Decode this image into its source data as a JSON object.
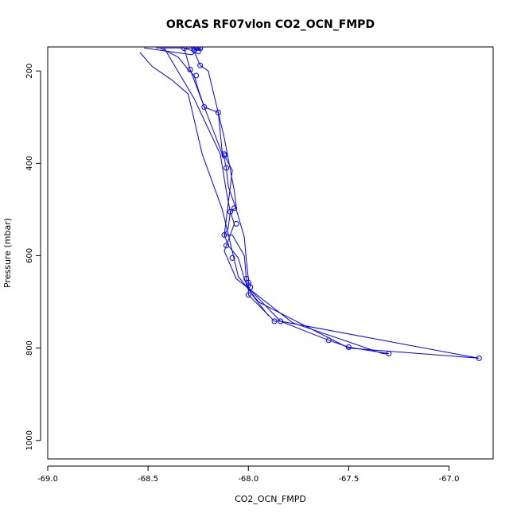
{
  "chart_data": {
    "type": "line",
    "title": "ORCAS RF07vlon CO2_OCN_FMPD",
    "xlabel": "CO2_OCN_FMPD",
    "ylabel": "Pressure (mbar)",
    "xlim": [
      -69.0,
      -66.78
    ],
    "ylim": [
      1040,
      148
    ],
    "y_reversed": true,
    "x_ticks": [
      -69.0,
      -68.5,
      -68.0,
      -67.5,
      -67.0
    ],
    "x_tick_labels": [
      "-69.0",
      "-68.5",
      "-68.0",
      "-67.5",
      "-67.0"
    ],
    "y_ticks": [
      200,
      400,
      600,
      800,
      1000
    ],
    "y_tick_labels": [
      "200",
      "400",
      "600",
      "800",
      "1000"
    ],
    "grid": false,
    "legend": "none",
    "marker": "open-circle",
    "colors": {
      "series": "#0000ff",
      "axis": "#000000",
      "background": "#ffffff"
    },
    "series": [
      {
        "x": [
          -68.52,
          -68.28,
          -68.26,
          -68.25,
          -68.24,
          -68.24,
          -68.26,
          -68.27,
          -68.32,
          -68.29,
          -68.22,
          -68.15,
          -68.13,
          -68.12,
          -68.08,
          -68.12,
          -68.1,
          -68.05,
          -68.02,
          -68.01,
          -68.0,
          -68.0,
          -67.87,
          -67.84,
          -67.6,
          -67.5,
          -67.3,
          -67.33,
          -67.78,
          -68.06,
          -68.12,
          -68.07,
          -68.09,
          -68.11,
          -68.14,
          -68.27,
          -68.42
        ],
        "y": [
          150,
          165,
          158,
          152,
          150,
          151,
          155,
          150,
          151,
          197,
          278,
          290,
          378,
          383,
          415,
          555,
          578,
          605,
          650,
          660,
          668,
          685,
          742,
          742,
          783,
          798,
          812,
          812,
          745,
          650,
          590,
          531,
          505,
          460,
          380,
          260,
          150
        ]
      },
      {
        "x": [
          -68.46,
          -68.34,
          -68.32,
          -68.27,
          -68.24,
          -68.2,
          -68.12,
          -68.07,
          -68.06,
          -68.09,
          -68.1,
          -68.12,
          -68.08,
          -68.02,
          -68.01,
          -68.01,
          -67.84,
          -66.85,
          -67.5,
          -67.95,
          -68.05,
          -68.13,
          -68.23,
          -68.3,
          -68.38,
          -68.48,
          -68.54
        ],
        "y": [
          150,
          150,
          150,
          158,
          188,
          200,
          345,
          460,
          495,
          505,
          540,
          555,
          555,
          600,
          650,
          665,
          742,
          822,
          800,
          700,
          645,
          500,
          380,
          250,
          220,
          190,
          160
        ]
      },
      {
        "x": [
          -68.44,
          -68.35,
          -68.3,
          -68.27,
          -68.25,
          -68.22,
          -68.13,
          -68.12,
          -68.11,
          -68.1,
          -68.06,
          -68.02,
          -68.01,
          -68.0,
          -68.0,
          -68.0,
          -67.98,
          -67.9
        ],
        "y": [
          150,
          170,
          197,
          210,
          240,
          278,
          380,
          390,
          410,
          450,
          500,
          560,
          610,
          650,
          660,
          668,
          685,
          730
        ]
      }
    ],
    "points": {
      "x": [
        -68.24,
        -68.25,
        -68.26,
        -68.27,
        -68.24,
        -68.27,
        -68.32,
        -68.24,
        -68.25,
        -68.29,
        -68.22,
        -68.26,
        -68.15,
        -68.12,
        -68.12,
        -68.11,
        -68.07,
        -68.09,
        -68.06,
        -68.12,
        -68.11,
        -68.08,
        -68.01,
        -68.0,
        -68.0,
        -67.99,
        -68.0,
        -67.87,
        -67.84,
        -67.6,
        -67.5,
        -67.3,
        -66.85
      ],
      "y": [
        150,
        150,
        150,
        150,
        151,
        155,
        151,
        188,
        158,
        197,
        278,
        210,
        290,
        380,
        383,
        410,
        497,
        505,
        531,
        555,
        578,
        605,
        650,
        658,
        664,
        668,
        685,
        742,
        742,
        783,
        798,
        812,
        822
      ]
    }
  }
}
